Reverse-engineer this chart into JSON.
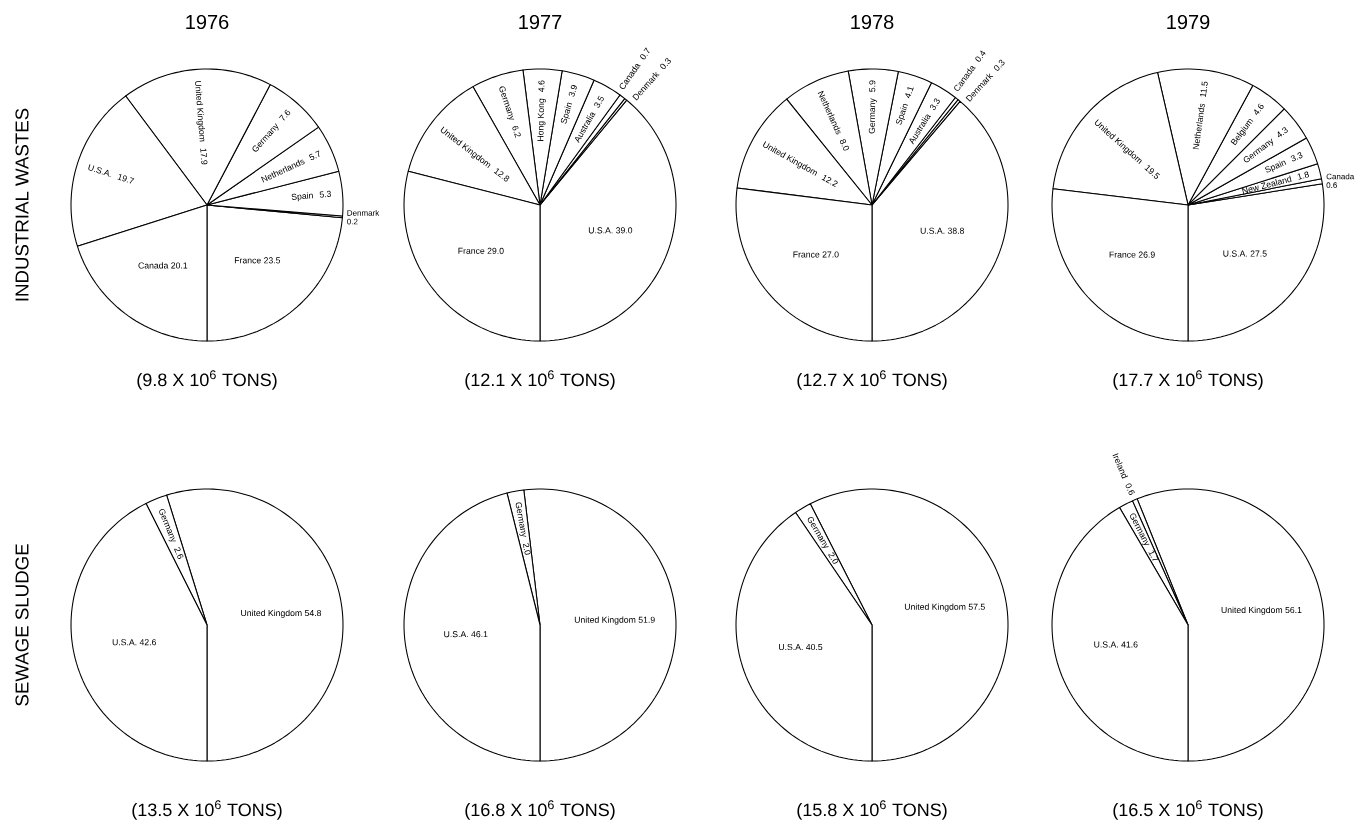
{
  "chart_data": [
    {
      "type": "pie",
      "title": "1976",
      "ylabel": "INDUSTRIAL WASTES",
      "categories": [
        "France",
        "Denmark",
        "Spain",
        "Netherlands",
        "Germany",
        "United Kingdom",
        "U.S.A.",
        "Canada"
      ],
      "values": [
        23.5,
        0.2,
        5.3,
        5.7,
        7.6,
        17.9,
        19.7,
        20.1
      ],
      "value_labels": [
        "23.5",
        "0.2",
        "5.3",
        "5.7",
        "7.6",
        "17.9",
        "19.7",
        "20.1"
      ],
      "colors": [
        "#ffffff",
        "#ffffff",
        "#ffffff",
        "#ffffff",
        "#ffffff",
        "#ffffff",
        "#ffffff",
        "#ffffff"
      ],
      "annotations": [
        "(9.8 X 10$^{6}$ TONS)"
      ]
    },
    {
      "type": "pie",
      "title": "1977",
      "categories": [
        "U.S.A.",
        "Denmark",
        "Canada",
        "Australia",
        "Spain",
        "Hong Kong",
        "Germany",
        "United Kingdom",
        "France"
      ],
      "values": [
        39.0,
        0.3,
        0.7,
        3.5,
        3.9,
        4.6,
        6.2,
        12.8,
        29.0
      ],
      "value_labels": [
        "39.0",
        "0.3",
        "0.7",
        "3.5",
        "3.9",
        "4.6",
        "6.2",
        "12.8",
        "29.0"
      ],
      "colors": [
        "#ffffff",
        "#ffffff",
        "#ffffff",
        "#ffffff",
        "#ffffff",
        "#ffffff",
        "#ffffff",
        "#ffffff",
        "#ffffff"
      ],
      "annotations": [
        "(12.1 X 10$^{6}$ TONS)"
      ]
    },
    {
      "type": "pie",
      "title": "1978",
      "categories": [
        "U.S.A.",
        "Denmark",
        "Canada",
        "Australia",
        "Spain",
        "Germany",
        "Netherlands",
        "United Kingdom",
        "France"
      ],
      "values": [
        38.8,
        0.3,
        0.4,
        3.3,
        4.1,
        5.9,
        8.0,
        12.2,
        27.0
      ],
      "value_labels": [
        "38.8",
        "0.3",
        "0.4",
        "3.3",
        "4.1",
        "5.9",
        "8.0",
        "12.2",
        "27.0"
      ],
      "colors": [
        "#ffffff",
        "#ffffff",
        "#ffffff",
        "#ffffff",
        "#ffffff",
        "#ffffff",
        "#ffffff",
        "#ffffff",
        "#ffffff"
      ],
      "annotations": [
        "(12.7 X 10$^{6}$ TONS)"
      ]
    },
    {
      "type": "pie",
      "title": "1979",
      "categories": [
        "U.S.A.",
        "Canada",
        "New Zealand",
        "Spain",
        "Germany",
        "Belgium",
        "Netherlands",
        "United Kingdom",
        "France"
      ],
      "values": [
        27.5,
        0.6,
        1.8,
        3.3,
        4.3,
        4.6,
        11.5,
        19.5,
        26.9
      ],
      "value_labels": [
        "27.5",
        "0.6",
        "1.8",
        "3.3",
        "4.3",
        "4.6",
        "11.5",
        "19.5",
        "26.9"
      ],
      "colors": [
        "#ffffff",
        "#ffffff",
        "#ffffff",
        "#ffffff",
        "#ffffff",
        "#ffffff",
        "#ffffff",
        "#ffffff",
        "#ffffff"
      ],
      "annotations": [
        "(17.7 X 10$^{6}$ TONS)"
      ]
    },
    {
      "type": "pie",
      "ylabel": "SEWAGE SLUDGE",
      "categories": [
        "United Kingdom",
        "Germany",
        "U.S.A."
      ],
      "values": [
        54.8,
        2.6,
        42.6
      ],
      "value_labels": [
        "54.8",
        "2.6",
        "42.6"
      ],
      "colors": [
        "#ffffff",
        "#ffffff",
        "#ffffff"
      ],
      "annotations": [
        "(13.5 X 10$^{6}$ TONS)"
      ]
    },
    {
      "type": "pie",
      "categories": [
        "United Kingdom",
        "Germany",
        "U.S.A."
      ],
      "values": [
        51.9,
        2.0,
        46.1
      ],
      "value_labels": [
        "51.9",
        "2.0",
        "46.1"
      ],
      "colors": [
        "#ffffff",
        "#ffffff",
        "#ffffff"
      ],
      "annotations": [
        "(16.8 X 10$^{6}$ TONS)"
      ]
    },
    {
      "type": "pie",
      "categories": [
        "United Kingdom",
        "Germany",
        "U.S.A."
      ],
      "values": [
        57.5,
        2.0,
        40.5
      ],
      "value_labels": [
        "57.5",
        "2.0",
        "40.5"
      ],
      "colors": [
        "#ffffff",
        "#ffffff",
        "#ffffff"
      ],
      "annotations": [
        "(15.8 X 10$^{6}$ TONS)"
      ]
    },
    {
      "type": "pie",
      "categories": [
        "United Kingdom",
        "Ireland",
        "Germany",
        "U.S.A."
      ],
      "values": [
        56.1,
        0.6,
        1.7,
        41.6
      ],
      "value_labels": [
        "56.1",
        "0.6",
        "1.7",
        "41.6"
      ],
      "colors": [
        "#ffffff",
        "#ffffff",
        "#ffffff",
        "#ffffff"
      ],
      "annotations": [
        "(16.5 X 10$^{6}$ TONS)"
      ]
    }
  ]
}
